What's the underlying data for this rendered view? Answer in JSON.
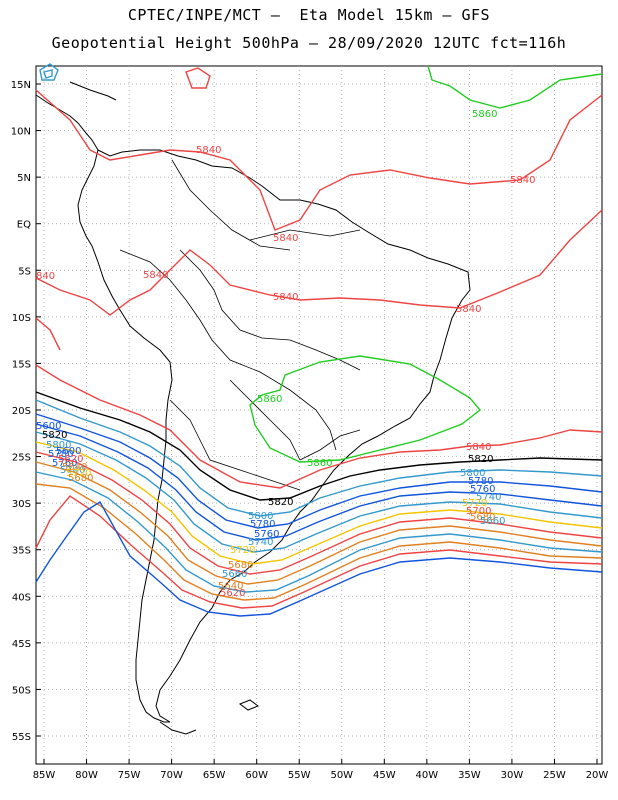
{
  "header": {
    "line1": "CPTEC/INPE/MCT –  Eta Model 15km – GFS",
    "line2": "Geopotential Height 500hPa – 28/09/2020 12UTC fct=116h"
  },
  "axes": {
    "lat_labels": [
      "15N",
      "10N",
      "5N",
      "EQ",
      "5S",
      "10S",
      "15S",
      "20S",
      "25S",
      "30S",
      "35S",
      "40S",
      "45S",
      "50S",
      "55S"
    ],
    "lon_labels": [
      "85W",
      "80W",
      "75W",
      "70W",
      "65W",
      "60W",
      "55W",
      "50W",
      "45W",
      "40W",
      "35W",
      "30W",
      "25W",
      "20W"
    ]
  },
  "contour_labels": [
    {
      "text": "5860",
      "color": "#22cc22"
    },
    {
      "text": "5840",
      "color": "#ee4444"
    },
    {
      "text": "5840",
      "color": "#ee4444"
    },
    {
      "text": "5840",
      "color": "#ee4444"
    },
    {
      "text": "5840",
      "color": "#ee4444"
    },
    {
      "text": "5840",
      "color": "#ee4444"
    },
    {
      "text": "840",
      "color": "#ee4444"
    },
    {
      "text": "5840",
      "color": "#ee4444"
    },
    {
      "text": "5860",
      "color": "#22cc22"
    },
    {
      "text": "5860",
      "color": "#22cc22"
    },
    {
      "text": "5840",
      "color": "#ee4444"
    },
    {
      "text": "5820",
      "color": "#000000"
    },
    {
      "text": "5800",
      "color": "#3399cc"
    },
    {
      "text": "5780",
      "color": "#1155dd"
    },
    {
      "text": "5760",
      "color": "#1155dd"
    },
    {
      "text": "5740",
      "color": "#3399cc"
    },
    {
      "text": "5720",
      "color": "#f5c400"
    },
    {
      "text": "5700",
      "color": "#ee4444"
    },
    {
      "text": "5680",
      "color": "#e08020"
    },
    {
      "text": "5660",
      "color": "#3399cc"
    },
    {
      "text": "5820",
      "color": "#000000"
    },
    {
      "text": "5800",
      "color": "#3399cc"
    },
    {
      "text": "5780",
      "color": "#1155dd"
    },
    {
      "text": "5760",
      "color": "#1155dd"
    },
    {
      "text": "5740",
      "color": "#3399cc"
    },
    {
      "text": "5720",
      "color": "#f5c400"
    },
    {
      "text": "5680",
      "color": "#e08020"
    },
    {
      "text": "5660",
      "color": "#3399cc"
    },
    {
      "text": "5640",
      "color": "#e08020"
    },
    {
      "text": "5620",
      "color": "#ee4444"
    },
    {
      "text": "5600",
      "color": "#1155dd"
    },
    {
      "text": "5820",
      "color": "#000000"
    },
    {
      "text": "5800",
      "color": "#3399cc"
    },
    {
      "text": "5780",
      "color": "#1155dd"
    },
    {
      "text": "5760",
      "color": "#1155dd"
    },
    {
      "text": "5740",
      "color": "#3399cc"
    },
    {
      "text": "5720",
      "color": "#f5c400"
    },
    {
      "text": "5680",
      "color": "#e08020"
    },
    {
      "text": "5640",
      "color": "#e08020"
    },
    {
      "text": "5620",
      "color": "#ee4444"
    },
    {
      "text": "5600",
      "color": "#1155dd"
    }
  ]
}
